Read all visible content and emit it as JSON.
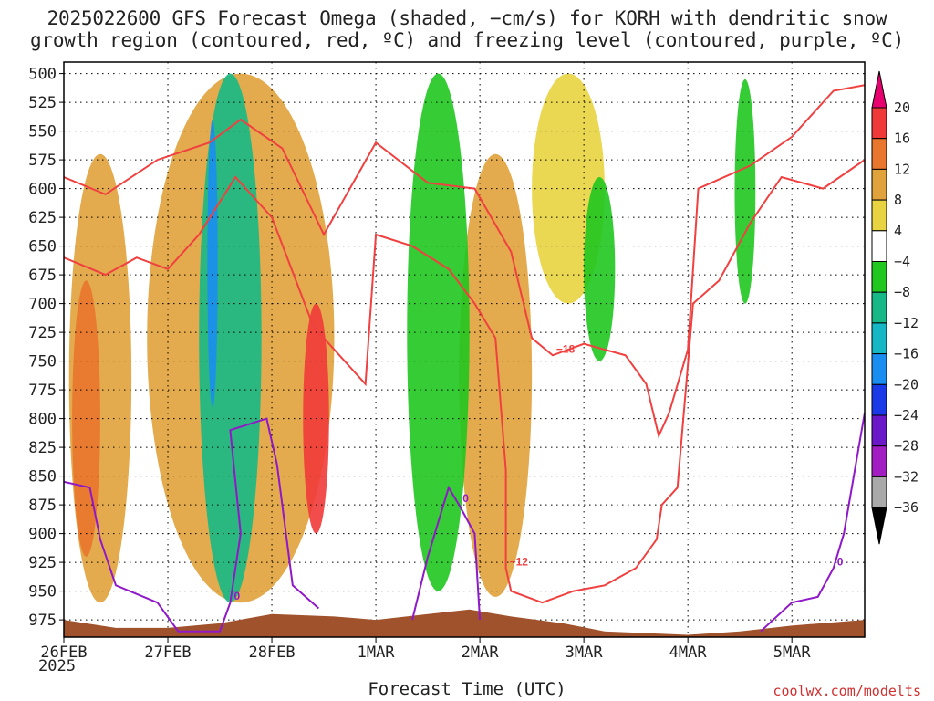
{
  "title_line1": "2025022600 GFS Forecast Omega (shaded, −cm/s) for KORH with dendritic snow",
  "title_line2": "growth region (contoured, red, ºC) and freezing level (contoured, purple, ºC)",
  "xlabel": "Forecast Time (UTC)",
  "credit": "coolwx.com/modelts",
  "year_label": "2025",
  "chart_data": {
    "type": "heatmap",
    "x_axis": {
      "range_days": [
        0,
        7.7
      ],
      "tick_labels": [
        "26FEB",
        "27FEB",
        "28FEB",
        "1MAR",
        "2MAR",
        "3MAR",
        "4MAR",
        "5MAR"
      ],
      "tick_days": [
        0,
        1,
        2,
        3,
        4,
        5,
        6,
        7
      ]
    },
    "y_axis": {
      "label": "",
      "range_hpa": [
        990,
        490
      ],
      "reversed": true,
      "tick_labels": [
        "500",
        "525",
        "550",
        "575",
        "600",
        "625",
        "650",
        "675",
        "700",
        "725",
        "750",
        "775",
        "800",
        "825",
        "850",
        "875",
        "900",
        "925",
        "950",
        "975"
      ],
      "ticks": [
        500,
        525,
        550,
        575,
        600,
        625,
        650,
        675,
        700,
        725,
        750,
        775,
        800,
        825,
        850,
        875,
        900,
        925,
        950,
        975
      ]
    },
    "grid": true,
    "colorbar": {
      "labels": [
        "20",
        "16",
        "12",
        "8",
        "4",
        "−4",
        "−8",
        "−12",
        "−16",
        "−20",
        "−24",
        "−28",
        "−32",
        "−36"
      ],
      "colors": [
        "#e8006f",
        "#f03a3a",
        "#e8762c",
        "#e0a23a",
        "#e8d440",
        "#ffffff",
        "#1fc71f",
        "#16b986",
        "#15b7c4",
        "#1a8ef0",
        "#1a3ae8",
        "#6a18c8",
        "#a21ec2",
        "#a9a9a9",
        "#000000"
      ]
    },
    "omega_regions": [
      {
        "name": "uplift-feb26",
        "x": [
          0.05,
          0.65
        ],
        "p": [
          570,
          960
        ],
        "level": 8
      },
      {
        "name": "uplift-feb26-core",
        "x": [
          0.08,
          0.35
        ],
        "p": [
          680,
          920
        ],
        "level": 12
      },
      {
        "name": "uplift-feb27-28",
        "x": [
          0.8,
          2.6
        ],
        "p": [
          500,
          960
        ],
        "level": 8
      },
      {
        "name": "uplift-feb28-core",
        "x": [
          2.3,
          2.55
        ],
        "p": [
          700,
          900
        ],
        "level": 16
      },
      {
        "name": "uplift-mar2",
        "x": [
          3.8,
          4.5
        ],
        "p": [
          570,
          955
        ],
        "level": 8
      },
      {
        "name": "uplift-mar2-3",
        "x": [
          4.5,
          5.2
        ],
        "p": [
          500,
          700
        ],
        "level": 4
      },
      {
        "name": "sink-feb27",
        "x": [
          1.3,
          1.9
        ],
        "p": [
          500,
          960
        ],
        "level": -12
      },
      {
        "name": "sink-feb27-core",
        "x": [
          1.38,
          1.48
        ],
        "p": [
          540,
          790
        ],
        "level": -20
      },
      {
        "name": "sink-mar1",
        "x": [
          3.3,
          3.9
        ],
        "p": [
          500,
          950
        ],
        "level": -8
      },
      {
        "name": "sink-mar3",
        "x": [
          5.0,
          5.3
        ],
        "p": [
          590,
          750
        ],
        "level": -8
      },
      {
        "name": "sink-mar4-5",
        "x": [
          6.45,
          6.65
        ],
        "p": [
          505,
          700
        ],
        "level": -8
      }
    ],
    "dgz_contours": [
      {
        "label": "−18",
        "points": [
          [
            0,
            590
          ],
          [
            0.4,
            605
          ],
          [
            0.9,
            575
          ],
          [
            1.4,
            560
          ],
          [
            1.7,
            540
          ],
          [
            2.1,
            565
          ],
          [
            2.5,
            640
          ],
          [
            2.75,
            600
          ],
          [
            3.0,
            560
          ],
          [
            3.5,
            595
          ],
          [
            3.95,
            600
          ],
          [
            4.3,
            655
          ],
          [
            4.5,
            730
          ],
          [
            4.7,
            745
          ],
          [
            5.0,
            735
          ],
          [
            5.2,
            740
          ],
          [
            5.4,
            745
          ],
          [
            5.6,
            770
          ],
          [
            5.72,
            815
          ],
          [
            5.82,
            795
          ],
          [
            6.0,
            740
          ],
          [
            6.1,
            600
          ],
          [
            6.6,
            580
          ],
          [
            7.0,
            555
          ],
          [
            7.4,
            515
          ],
          [
            7.7,
            510
          ]
        ]
      },
      {
        "label": "−12",
        "points": [
          [
            0,
            660
          ],
          [
            0.4,
            675
          ],
          [
            0.7,
            660
          ],
          [
            1.0,
            670
          ],
          [
            1.3,
            640
          ],
          [
            1.65,
            590
          ],
          [
            2.0,
            625
          ],
          [
            2.4,
            720
          ],
          [
            2.9,
            770
          ],
          [
            3.0,
            640
          ],
          [
            3.35,
            650
          ],
          [
            3.7,
            670
          ],
          [
            3.95,
            700
          ],
          [
            4.15,
            730
          ],
          [
            4.25,
            845
          ],
          [
            4.25,
            930
          ],
          [
            4.3,
            950
          ],
          [
            4.6,
            960
          ],
          [
            4.9,
            950
          ],
          [
            5.2,
            945
          ],
          [
            5.5,
            930
          ],
          [
            5.7,
            905
          ],
          [
            5.75,
            875
          ],
          [
            5.9,
            860
          ],
          [
            6.05,
            700
          ],
          [
            6.3,
            680
          ],
          [
            6.6,
            630
          ],
          [
            6.9,
            590
          ],
          [
            7.3,
            600
          ],
          [
            7.7,
            575
          ]
        ]
      }
    ],
    "freezing_contours": [
      {
        "label": "0",
        "points": [
          [
            0,
            855
          ],
          [
            0.25,
            860
          ],
          [
            0.35,
            905
          ],
          [
            0.5,
            945
          ],
          [
            0.9,
            960
          ],
          [
            1.1,
            985
          ],
          [
            1.5,
            985
          ],
          [
            1.6,
            960
          ],
          [
            1.7,
            900
          ],
          [
            1.6,
            810
          ],
          [
            1.95,
            800
          ],
          [
            2.05,
            840
          ],
          [
            2.2,
            945
          ],
          [
            2.45,
            965
          ]
        ]
      },
      {
        "label": "0",
        "points": [
          [
            3.35,
            975
          ],
          [
            3.5,
            920
          ],
          [
            3.7,
            860
          ],
          [
            3.8,
            875
          ],
          [
            3.95,
            900
          ],
          [
            4.0,
            975
          ]
        ]
      },
      {
        "label": "0",
        "points": [
          [
            6.7,
            985
          ],
          [
            7.0,
            960
          ],
          [
            7.25,
            955
          ],
          [
            7.4,
            930
          ],
          [
            7.5,
            900
          ],
          [
            7.7,
            795
          ]
        ]
      }
    ],
    "terrain": {
      "color": "#a0522d",
      "points": [
        [
          0,
          975
        ],
        [
          0.5,
          982
        ],
        [
          1.0,
          982
        ],
        [
          1.5,
          978
        ],
        [
          2.0,
          970
        ],
        [
          2.6,
          972
        ],
        [
          3.0,
          975
        ],
        [
          3.5,
          970
        ],
        [
          3.9,
          966
        ],
        [
          4.3,
          972
        ],
        [
          4.8,
          978
        ],
        [
          5.2,
          985
        ],
        [
          6.0,
          988
        ],
        [
          6.5,
          985
        ],
        [
          7.0,
          980
        ],
        [
          7.7,
          975
        ]
      ]
    }
  }
}
